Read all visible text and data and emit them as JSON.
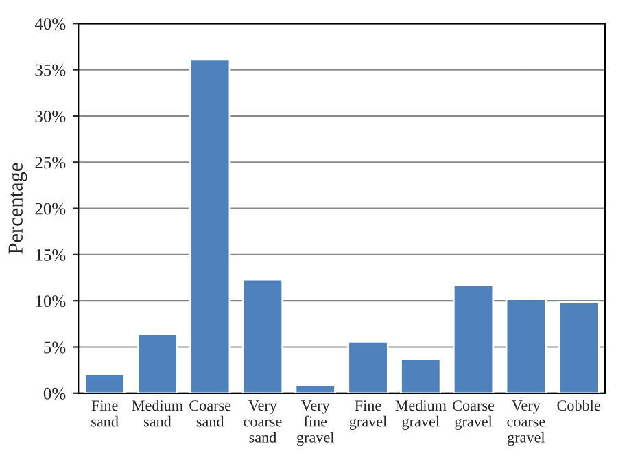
{
  "chart_data": {
    "type": "bar",
    "ylabel": "Percentage",
    "categories": [
      "Fine sand",
      "Medium sand",
      "Coarse sand",
      "Very coarse sand",
      "Very fine gravel",
      "Fine gravel",
      "Medium gravel",
      "Coarse gravel",
      "Very coarse gravel",
      "Cobble"
    ],
    "values": [
      2.1,
      6.4,
      36.1,
      12.3,
      0.9,
      5.6,
      3.7,
      11.7,
      10.2,
      9.9
    ],
    "color": "#4f81bd",
    "ylim": [
      0,
      40
    ],
    "yticks": [
      {
        "value": 0,
        "label": "0%"
      },
      {
        "value": 5,
        "label": "5%"
      },
      {
        "value": 10,
        "label": "10%"
      },
      {
        "value": 15,
        "label": "15%"
      },
      {
        "value": 20,
        "label": "20%"
      },
      {
        "value": 25,
        "label": "25%"
      },
      {
        "value": 30,
        "label": "30%"
      },
      {
        "value": 35,
        "label": "35%"
      },
      {
        "value": 40,
        "label": "40%"
      }
    ],
    "grid": "y"
  }
}
